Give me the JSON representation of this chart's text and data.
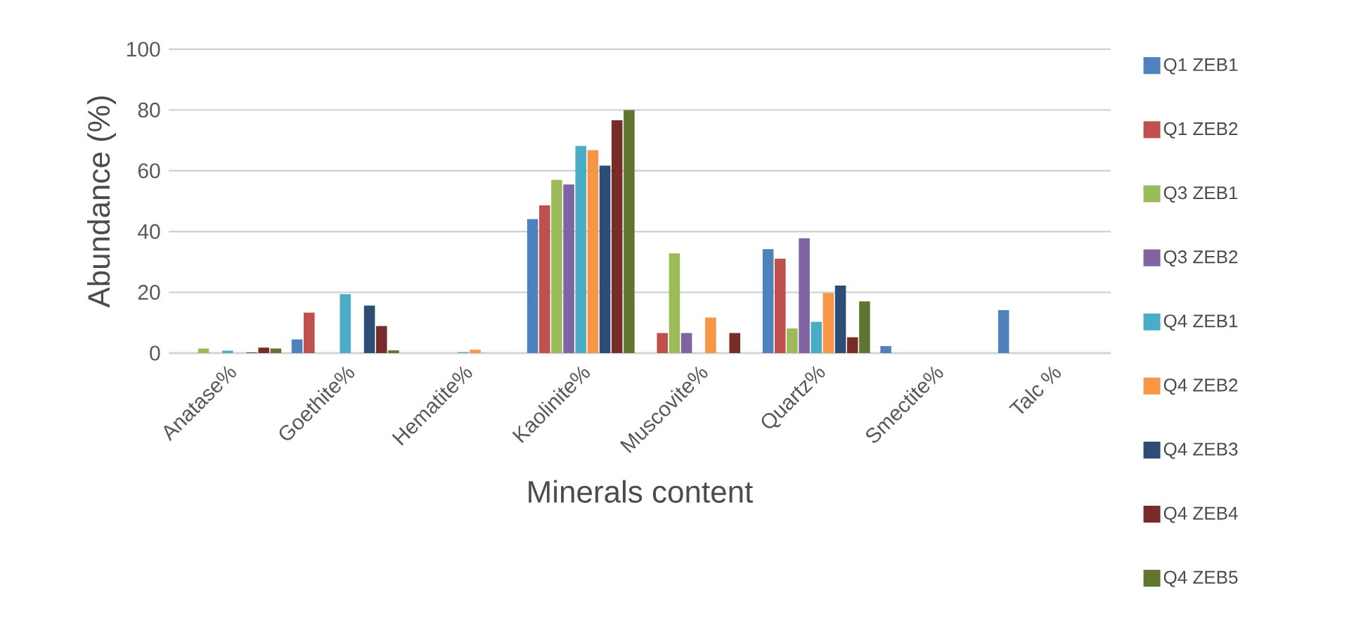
{
  "chart_data": {
    "type": "bar",
    "xlabel": "Minerals content",
    "ylabel": "Abundance (%)",
    "categories": [
      "Anatase%",
      "Goethite%",
      "Hematite%",
      "Kaolinite%",
      "Muscovite%",
      "Quartz%",
      "Smectite%",
      "Talc %"
    ],
    "series": [
      {
        "name": "Q1 ZEB1",
        "color": "#4f81bd",
        "values": [
          0,
          4.5,
          0,
          44.1,
          0,
          34.2,
          2.3,
          14.1
        ]
      },
      {
        "name": "Q1 ZEB2",
        "color": "#c0504d",
        "values": [
          0,
          13.3,
          0,
          48.6,
          6.6,
          31.1,
          0,
          0
        ]
      },
      {
        "name": "Q3 ZEB1",
        "color": "#9bbb59",
        "values": [
          1.5,
          0,
          0,
          57.0,
          32.8,
          8.1,
          0,
          0
        ]
      },
      {
        "name": "Q3 ZEB2",
        "color": "#8064a2",
        "values": [
          0,
          0,
          0,
          55.5,
          6.6,
          37.8,
          0,
          0
        ]
      },
      {
        "name": "Q4 ZEB1",
        "color": "#4bacc6",
        "values": [
          0.8,
          19.4,
          0.3,
          68.2,
          0,
          10.3,
          0,
          0
        ]
      },
      {
        "name": "Q4 ZEB2",
        "color": "#f79646",
        "values": [
          0,
          0,
          1.1,
          66.8,
          11.7,
          19.8,
          0,
          0
        ]
      },
      {
        "name": "Q4 ZEB3",
        "color": "#2c4d75",
        "values": [
          0.2,
          15.6,
          0,
          61.7,
          0,
          22.2,
          0,
          0
        ]
      },
      {
        "name": "Q4 ZEB4",
        "color": "#772c2a",
        "values": [
          1.8,
          8.9,
          0,
          76.6,
          6.6,
          5.2,
          0,
          0
        ]
      },
      {
        "name": "Q4 ZEB5",
        "color": "#5f7530",
        "values": [
          1.5,
          0.9,
          0,
          80.0,
          0,
          17.0,
          0,
          0
        ]
      }
    ],
    "ylim": [
      0,
      100
    ],
    "yticks": [
      0,
      20,
      40,
      60,
      80,
      100
    ],
    "grid": "y",
    "legend": "right"
  }
}
